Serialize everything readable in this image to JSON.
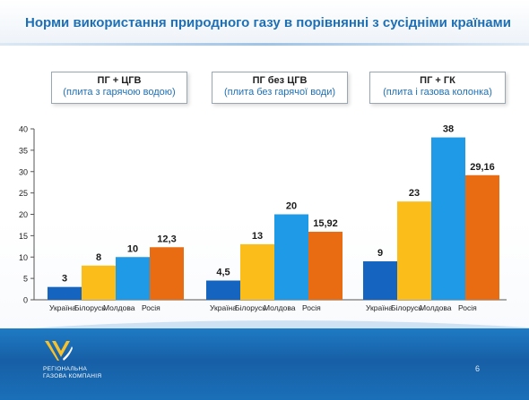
{
  "slide": {
    "title": "Норми використання природного газу в порівнянні з сусідніми країнами",
    "page_number": "6",
    "brand": {
      "line1": "РЕГІОНАЛЬНА",
      "line2": "ГАЗОВА КОМПАНІЯ"
    }
  },
  "colors": {
    "Україна": "#1565c0",
    "Білорусь": "#fbbd1a",
    "Молдова": "#1e9ae6",
    "Росія": "#e96b12",
    "title": "#1f6fb4",
    "footer": "#1a70b8"
  },
  "chart_data": {
    "type": "bar",
    "ylim": [
      0,
      40
    ],
    "yticks": [
      0,
      5,
      10,
      15,
      20,
      25,
      30,
      35,
      40
    ],
    "grid": false,
    "legend": "none",
    "categories": [
      "Україна",
      "Білорусь",
      "Молдова",
      "Росія"
    ],
    "groups": [
      {
        "title": "ПГ + ЦГВ",
        "subtitle": "(плита з гарячою водою)",
        "values": [
          3,
          8,
          10,
          12.3
        ],
        "labels": [
          "3",
          "8",
          "10",
          "12,3"
        ]
      },
      {
        "title": "ПГ без ЦГВ",
        "subtitle": "(плита без гарячої води)",
        "values": [
          4.5,
          13,
          20,
          15.92
        ],
        "labels": [
          "4,5",
          "13",
          "20",
          "15,92"
        ]
      },
      {
        "title": "ПГ + ГК",
        "subtitle": "(плита і газова колонка)",
        "values": [
          9,
          23,
          38,
          29.16
        ],
        "labels": [
          "9",
          "23",
          "38",
          "29,16"
        ]
      }
    ]
  }
}
